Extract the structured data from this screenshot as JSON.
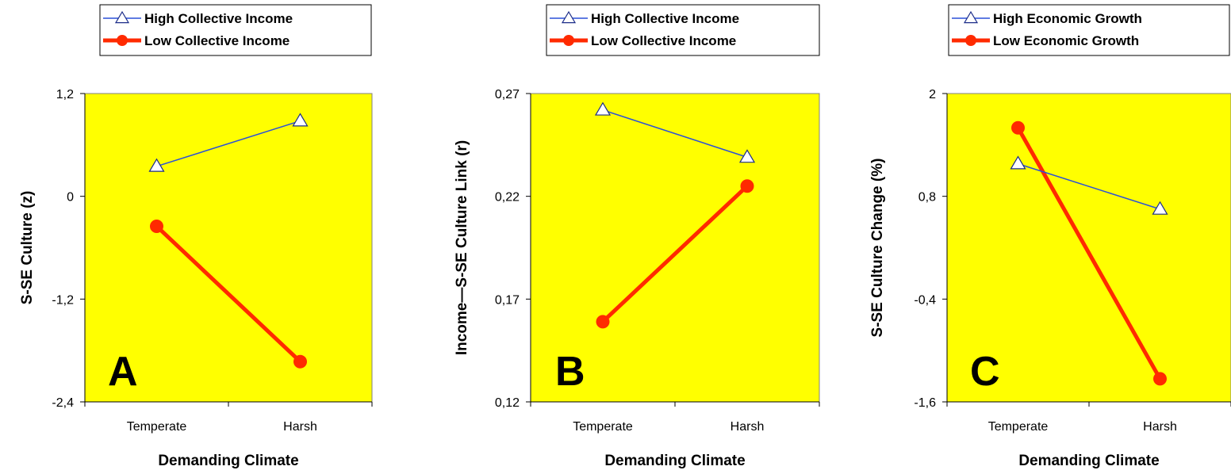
{
  "chart_data": [
    {
      "type": "line",
      "panel_label": "A",
      "categories": [
        "Temperate",
        "Harsh"
      ],
      "series": [
        {
          "name": "High Collective Income",
          "values": [
            0.35,
            0.88
          ],
          "color": "#2b50d8",
          "marker": "triangle-open"
        },
        {
          "name": "Low Collective Income",
          "values": [
            -0.35,
            -1.93
          ],
          "color": "#ff2a00",
          "marker": "circle-filled"
        }
      ],
      "xlabel": "Demanding Climate",
      "ylabel": "S-SE Culture (z)",
      "ylim": [
        -2.4,
        1.2
      ],
      "yticks": [
        1.2,
        0,
        -1.2,
        -2.4
      ],
      "ytick_labels": [
        "1,2",
        "0",
        "-1,2",
        "-2,4"
      ],
      "plot_background": "#ffff00",
      "legend_position": "top"
    },
    {
      "type": "line",
      "panel_label": "B",
      "categories": [
        "Temperate",
        "Harsh"
      ],
      "series": [
        {
          "name": "High Collective Income",
          "values": [
            0.262,
            0.239
          ],
          "color": "#2b50d8",
          "marker": "triangle-open"
        },
        {
          "name": "Low Collective Income",
          "values": [
            0.159,
            0.225
          ],
          "color": "#ff2a00",
          "marker": "circle-filled"
        }
      ],
      "xlabel": "Demanding Climate",
      "ylabel": "Income—S-SE Culture Link (r)",
      "ylim": [
        0.12,
        0.27
      ],
      "yticks": [
        0.27,
        0.22,
        0.17,
        0.12
      ],
      "ytick_labels": [
        "0,27",
        "0,22",
        "0,17",
        "0,12"
      ],
      "plot_background": "#ffff00",
      "legend_position": "top"
    },
    {
      "type": "line",
      "panel_label": "C",
      "categories": [
        "Temperate",
        "Harsh"
      ],
      "series": [
        {
          "name": "High Economic Growth",
          "values": [
            1.18,
            0.65
          ],
          "color": "#2b50d8",
          "marker": "triangle-open"
        },
        {
          "name": "Low Economic Growth",
          "values": [
            1.6,
            -1.33
          ],
          "color": "#ff2a00",
          "marker": "circle-filled"
        }
      ],
      "xlabel": "Demanding Climate",
      "ylabel": "S-SE Culture Change (%)",
      "ylim": [
        -1.6,
        2.0
      ],
      "yticks": [
        2.0,
        0.8,
        -0.4,
        -1.6
      ],
      "ytick_labels": [
        "2",
        "0,8",
        "-0,4",
        "-1,6"
      ],
      "plot_background": "#ffff00",
      "legend_position": "top"
    }
  ]
}
